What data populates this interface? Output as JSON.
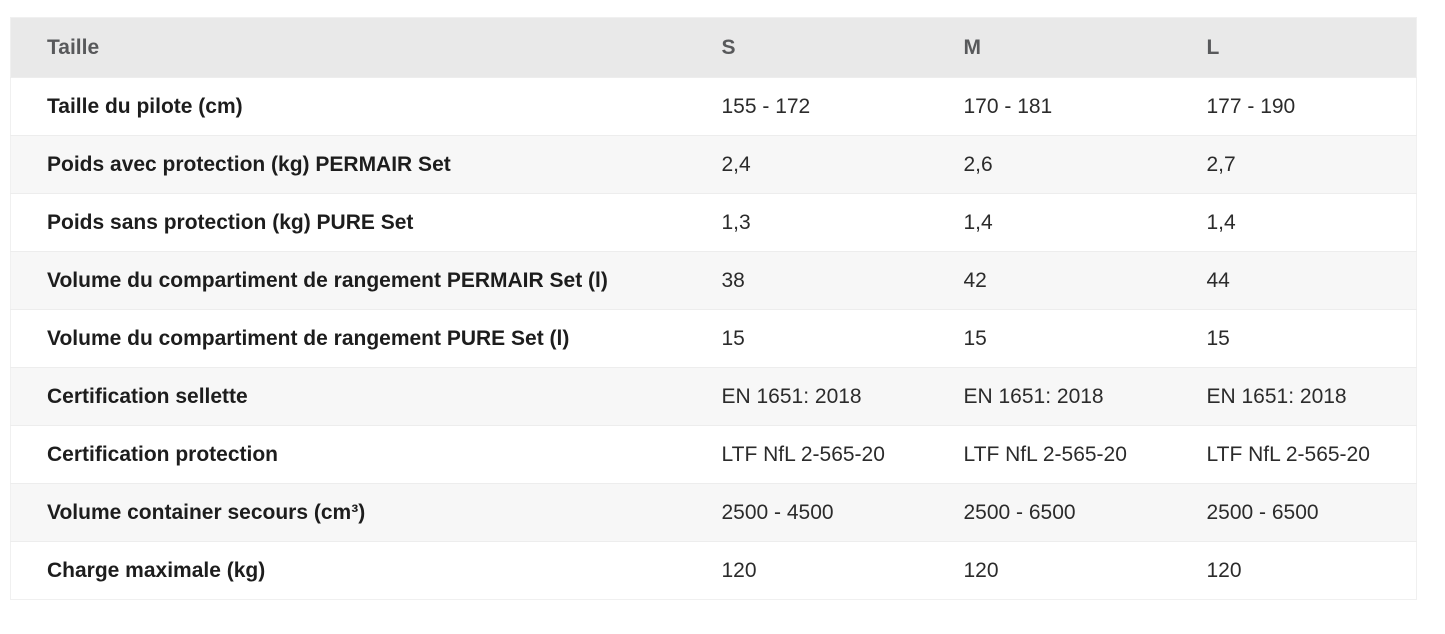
{
  "table": {
    "columns": [
      "Taille",
      "S",
      "M",
      "L"
    ],
    "rows": [
      {
        "label": "Taille du pilote (cm)",
        "values": [
          "155 - 172",
          "170 - 181",
          "177 - 190"
        ]
      },
      {
        "label": "Poids avec protection (kg) PERMAIR Set",
        "values": [
          "2,4",
          "2,6",
          "2,7"
        ]
      },
      {
        "label": "Poids sans protection (kg) PURE Set",
        "values": [
          "1,3",
          "1,4",
          "1,4"
        ]
      },
      {
        "label": "Volume du compartiment de rangement PERMAIR Set (l)",
        "values": [
          "38",
          "42",
          "44"
        ]
      },
      {
        "label": "Volume du compartiment de rangement PURE Set (l)",
        "values": [
          "15",
          "15",
          "15"
        ]
      },
      {
        "label": "Certification sellette",
        "values": [
          "EN 1651: 2018",
          "EN 1651: 2018",
          "EN 1651: 2018"
        ]
      },
      {
        "label": "Certification protection",
        "values": [
          "LTF NfL 2-565-20",
          "LTF NfL 2-565-20",
          "LTF NfL 2-565-20"
        ]
      },
      {
        "label": "Volume container secours (cm³)",
        "values": [
          "2500 - 4500",
          "2500 - 6500",
          "2500 - 6500"
        ]
      },
      {
        "label": "Charge maximale (kg)",
        "values": [
          "120",
          "120",
          "120"
        ]
      }
    ],
    "colors": {
      "header_bg": "#e9e9e9",
      "header_text": "#58595b",
      "stripe_bg": "#f7f7f7",
      "row_bg": "#ffffff",
      "label_text": "#1d1d1d",
      "value_text": "#2b2b2b",
      "border": "#ededed"
    }
  }
}
